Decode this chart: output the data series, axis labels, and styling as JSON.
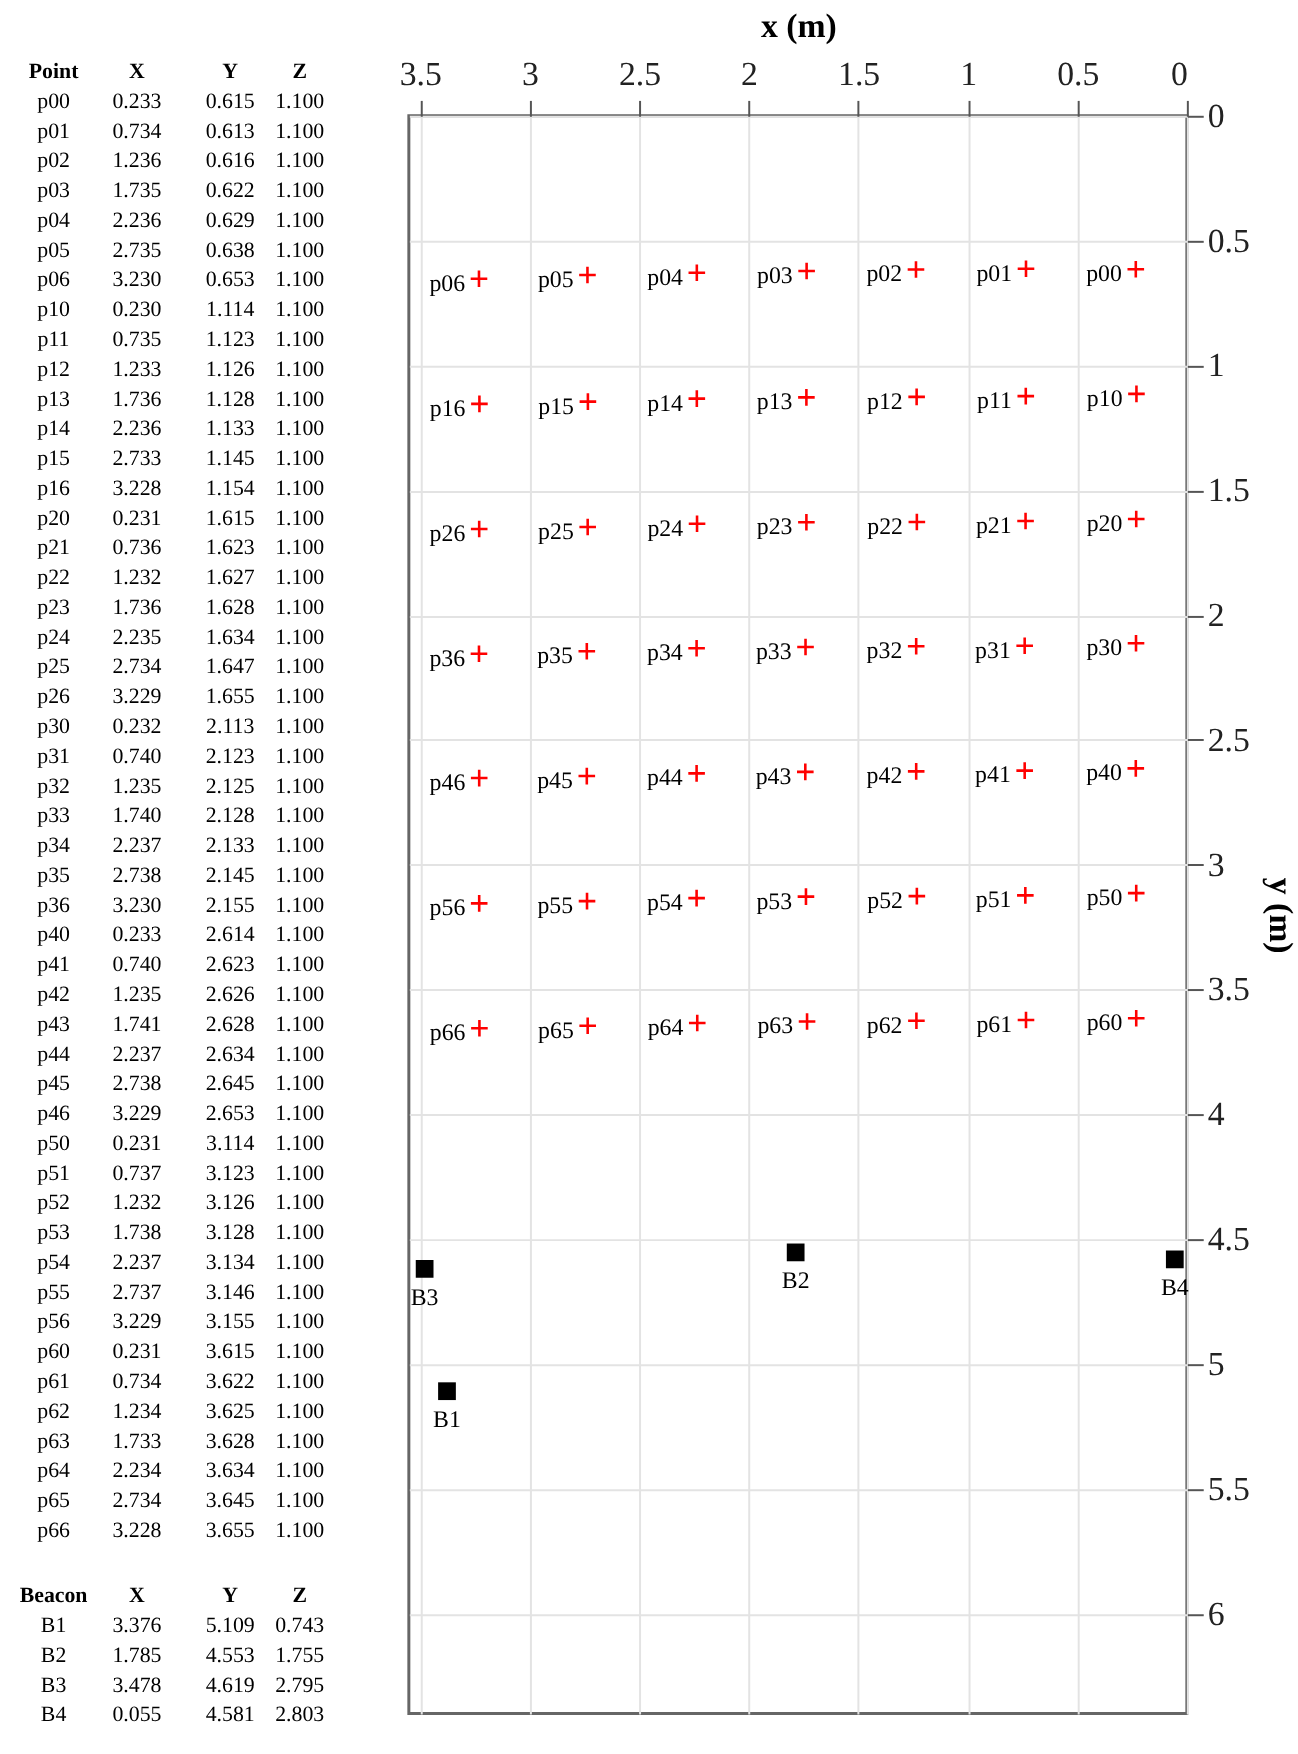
{
  "chart_data": {
    "type": "scatter",
    "xlabel": "x (m)",
    "ylabel": "y (m)",
    "xlim": [
      3.55,
      0
    ],
    "ylim": [
      6.4,
      0
    ],
    "xticks": [
      0,
      0.5,
      1,
      1.5,
      2,
      2.5,
      3,
      3.5
    ],
    "yticks": [
      0,
      0.5,
      1,
      1.5,
      2,
      2.5,
      3,
      3.5,
      4,
      4.5,
      5,
      5.5,
      6
    ],
    "grid": true,
    "series": [
      {
        "marker": "cross",
        "color": "#ff0000",
        "x": [
          0.233,
          0.734,
          1.236,
          1.735,
          2.236,
          2.735,
          3.23,
          0.23,
          0.735,
          1.233,
          1.736,
          2.236,
          2.733,
          3.228,
          0.231,
          0.736,
          1.232,
          1.736,
          2.235,
          2.734,
          3.229,
          0.232,
          0.74,
          1.235,
          1.74,
          2.237,
          2.738,
          3.23,
          0.233,
          0.74,
          1.235,
          1.741,
          2.237,
          2.738,
          3.229,
          0.231,
          0.737,
          1.232,
          1.738,
          2.237,
          2.737,
          3.229,
          0.231,
          0.734,
          1.234,
          1.733,
          2.234,
          2.734,
          3.228
        ],
        "values": [
          0.615,
          0.613,
          0.616,
          0.622,
          0.629,
          0.638,
          0.653,
          1.114,
          1.123,
          1.126,
          1.128,
          1.133,
          1.145,
          1.154,
          1.615,
          1.623,
          1.627,
          1.628,
          1.634,
          1.647,
          1.655,
          2.113,
          2.123,
          2.125,
          2.128,
          2.133,
          2.145,
          2.155,
          2.614,
          2.623,
          2.626,
          2.628,
          2.634,
          2.645,
          2.653,
          3.114,
          3.123,
          3.126,
          3.128,
          3.134,
          3.146,
          3.155,
          3.615,
          3.622,
          3.625,
          3.628,
          3.634,
          3.645,
          3.655
        ],
        "value_labels": [
          "p00",
          "p01",
          "p02",
          "p03",
          "p04",
          "p05",
          "p06",
          "p10",
          "p11",
          "p12",
          "p13",
          "p14",
          "p15",
          "p16",
          "p20",
          "p21",
          "p22",
          "p23",
          "p24",
          "p25",
          "p26",
          "p30",
          "p31",
          "p32",
          "p33",
          "p34",
          "p35",
          "p36",
          "p40",
          "p41",
          "p42",
          "p43",
          "p44",
          "p45",
          "p46",
          "p50",
          "p51",
          "p52",
          "p53",
          "p54",
          "p55",
          "p56",
          "p60",
          "p61",
          "p62",
          "p63",
          "p64",
          "p65",
          "p66"
        ]
      },
      {
        "marker": "square",
        "color": "#000000",
        "x": [
          3.376,
          1.785,
          3.478,
          0.055
        ],
        "values": [
          5.109,
          4.553,
          4.619,
          4.581
        ],
        "value_labels": [
          "B1",
          "B2",
          "B3",
          "B4"
        ]
      }
    ],
    "annotations": [
      "Point X Y Z",
      "p00 0.233 0.615 1.100",
      "p01 0.734 0.613 1.100",
      "p02 1.236 0.616 1.100",
      "p03 1.735 0.622 1.100",
      "p04 2.236 0.629 1.100",
      "p05 2.735 0.638 1.100",
      "p06 3.230 0.653 1.100",
      "p10 0.230 1.114 1.100",
      "p11 0.735 1.123 1.100",
      "p12 1.233 1.126 1.100",
      "p13 1.736 1.128 1.100",
      "p14 2.236 1.133 1.100",
      "p15 2.733 1.145 1.100",
      "p16 3.228 1.154 1.100",
      "p20 0.231 1.615 1.100",
      "p21 0.736 1.623 1.100",
      "p22 1.232 1.627 1.100",
      "p23 1.736 1.628 1.100",
      "p24 2.235 1.634 1.100",
      "p25 2.734 1.647 1.100",
      "p26 3.229 1.655 1.100",
      "p30 0.232 2.113 1.100",
      "p31 0.740 2.123 1.100",
      "p32 1.235 2.125 1.100",
      "p33 1.740 2.128 1.100",
      "p34 2.237 2.133 1.100",
      "p35 2.738 2.145 1.100",
      "p36 3.230 2.155 1.100",
      "p40 0.233 2.614 1.100",
      "p41 0.740 2.623 1.100",
      "p42 1.235 2.626 1.100",
      "p43 1.741 2.628 1.100",
      "p44 2.237 2.634 1.100",
      "p45 2.738 2.645 1.100",
      "p46 3.229 2.653 1.100",
      "p50 0.231 3.114 1.100",
      "p51 0.737 3.123 1.100",
      "p52 1.232 3.126 1.100",
      "p53 1.738 3.128 1.100",
      "p54 2.237 3.134 1.100",
      "p55 2.737 3.146 1.100",
      "p56 3.229 3.155 1.100",
      "p60 0.231 3.615 1.100",
      "p61 0.734 3.622 1.100",
      "p62 1.234 3.625 1.100",
      "p63 1.733 3.628 1.100",
      "p64 2.234 3.634 1.100",
      "p65 2.734 3.645 1.100",
      "p66 3.228 3.655 1.100",
      "Beacon X Y Z",
      "B1 3.376 5.109 0.743",
      "B2 1.785 4.553 1.755",
      "B3 3.478 4.619 2.795",
      "B4 0.055 4.581 2.803"
    ]
  }
}
